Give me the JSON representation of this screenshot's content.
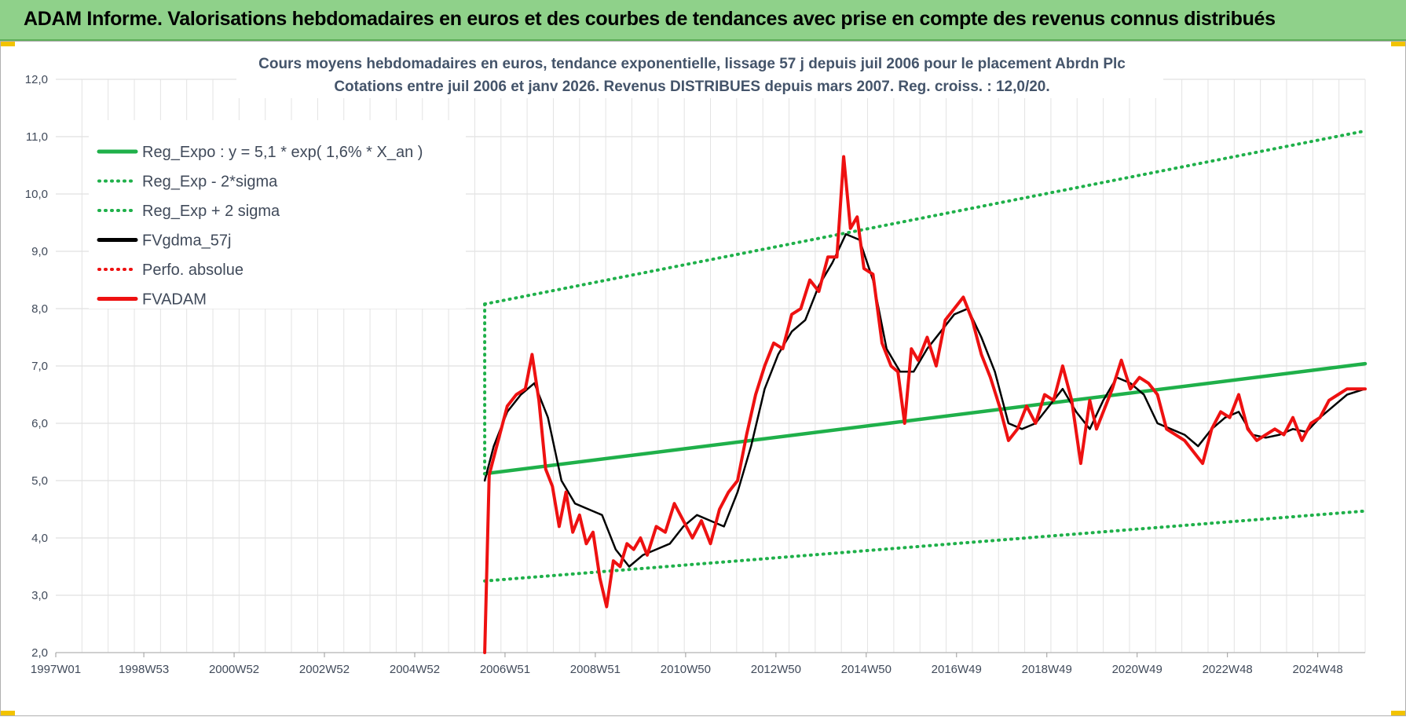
{
  "header": {
    "title": "ADAM Informe. Valorisations hebdomadaires en euros et des courbes de tendances avec prise en compte des revenus connus distribués"
  },
  "chart_data": {
    "type": "line",
    "title_line1": "Cours moyens hebdomadaires en euros, tendance exponentielle, lissage 57 j depuis juil 2006 pour le placement Abrdn Plc",
    "title_line2": "Cotations entre juil 2006 et janv 2026. Revenus DISTRIBUES depuis mars 2007. Reg. croiss. : 12,0/20.",
    "x_ticks": [
      "1997W01",
      "1998W53",
      "2000W52",
      "2002W52",
      "2004W52",
      "2006W51",
      "2008W51",
      "2010W50",
      "2012W50",
      "2014W50",
      "2016W49",
      "2018W49",
      "2020W49",
      "2022W48",
      "2024W48"
    ],
    "x_range": [
      1997.0,
      2026.0
    ],
    "y_ticks": [
      "2,0",
      "3,0",
      "4,0",
      "5,0",
      "6,0",
      "7,0",
      "8,0",
      "9,0",
      "10,0",
      "11,0",
      "12,0"
    ],
    "ylim": [
      2.0,
      12.0
    ],
    "grid": true,
    "legend_position": "top-left",
    "colors": {
      "green": "#1fb04a",
      "black": "#000000",
      "red": "#ee1111"
    },
    "series": [
      {
        "name": "Reg_Expo : y = 5,1 * exp( 1,6% *  X_an )",
        "style": "solid",
        "color": "#1fb04a",
        "x": [
          2006.5,
          2026.0
        ],
        "y": [
          5.12,
          7.04
        ]
      },
      {
        "name": "Reg_Exp - 2*sigma",
        "style": "dotted",
        "color": "#1fb04a",
        "x": [
          2006.5,
          2026.0
        ],
        "y": [
          3.25,
          4.47
        ]
      },
      {
        "name": "Reg_Exp + 2 sigma",
        "style": "dotted",
        "color": "#1fb04a",
        "x": [
          2006.5,
          2026.0
        ],
        "y": [
          8.08,
          11.1
        ]
      },
      {
        "name": "FVgdma_57j",
        "style": "solid",
        "color": "#000000",
        "x": [
          2006.5,
          2006.7,
          2007.0,
          2007.3,
          2007.6,
          2007.9,
          2008.2,
          2008.5,
          2008.8,
          2009.1,
          2009.4,
          2009.7,
          2010.0,
          2010.3,
          2010.6,
          2010.9,
          2011.2,
          2011.5,
          2011.8,
          2012.1,
          2012.4,
          2012.7,
          2013.0,
          2013.3,
          2013.6,
          2013.9,
          2014.2,
          2014.5,
          2014.8,
          2015.1,
          2015.4,
          2015.7,
          2016.0,
          2016.3,
          2016.6,
          2016.9,
          2017.2,
          2017.5,
          2017.8,
          2018.1,
          2018.4,
          2018.7,
          2019.0,
          2019.3,
          2019.6,
          2019.9,
          2020.2,
          2020.5,
          2020.8,
          2021.1,
          2021.4,
          2021.7,
          2022.0,
          2022.3,
          2022.6,
          2022.9,
          2023.2,
          2023.5,
          2023.8,
          2024.1,
          2024.4,
          2024.7,
          2025.0,
          2025.3,
          2025.6,
          2026.0
        ],
        "y": [
          5.0,
          5.6,
          6.2,
          6.5,
          6.7,
          6.1,
          5.0,
          4.6,
          4.5,
          4.4,
          3.8,
          3.5,
          3.7,
          3.8,
          3.9,
          4.2,
          4.4,
          4.3,
          4.2,
          4.8,
          5.6,
          6.6,
          7.2,
          7.6,
          7.8,
          8.4,
          8.8,
          9.3,
          9.2,
          8.5,
          7.3,
          6.9,
          6.9,
          7.3,
          7.6,
          7.9,
          8.0,
          7.5,
          6.9,
          6.0,
          5.9,
          6.0,
          6.3,
          6.6,
          6.2,
          5.9,
          6.4,
          6.8,
          6.7,
          6.5,
          6.0,
          5.9,
          5.8,
          5.6,
          5.9,
          6.1,
          6.2,
          5.8,
          5.75,
          5.8,
          5.9,
          5.85,
          6.1,
          6.3,
          6.5,
          6.6
        ]
      },
      {
        "name": "Perfo. absolue",
        "style": "dotted",
        "color": "#ee1111",
        "x": [],
        "y": []
      },
      {
        "name": "FVADAM",
        "style": "solid",
        "color": "#ee1111",
        "x": [
          2006.5,
          2006.6,
          2006.8,
          2007.0,
          2007.2,
          2007.4,
          2007.55,
          2007.7,
          2007.85,
          2008.0,
          2008.15,
          2008.3,
          2008.45,
          2008.6,
          2008.75,
          2008.9,
          2009.05,
          2009.2,
          2009.35,
          2009.5,
          2009.65,
          2009.8,
          2009.95,
          2010.1,
          2010.3,
          2010.5,
          2010.7,
          2010.9,
          2011.1,
          2011.3,
          2011.5,
          2011.7,
          2011.9,
          2012.1,
          2012.3,
          2012.5,
          2012.7,
          2012.9,
          2013.1,
          2013.3,
          2013.5,
          2013.7,
          2013.9,
          2014.1,
          2014.3,
          2014.45,
          2014.6,
          2014.75,
          2014.9,
          2015.1,
          2015.3,
          2015.5,
          2015.65,
          2015.8,
          2015.95,
          2016.1,
          2016.3,
          2016.5,
          2016.7,
          2016.9,
          2017.1,
          2017.3,
          2017.5,
          2017.7,
          2017.9,
          2018.1,
          2018.3,
          2018.5,
          2018.7,
          2018.9,
          2019.1,
          2019.3,
          2019.5,
          2019.7,
          2019.9,
          2020.05,
          2020.2,
          2020.4,
          2020.6,
          2020.8,
          2021.0,
          2021.2,
          2021.4,
          2021.6,
          2021.8,
          2022.0,
          2022.2,
          2022.4,
          2022.6,
          2022.8,
          2023.0,
          2023.2,
          2023.4,
          2023.6,
          2023.8,
          2024.0,
          2024.2,
          2024.4,
          2024.6,
          2024.8,
          2025.0,
          2025.2,
          2025.4,
          2025.6,
          2025.8,
          2026.0
        ],
        "y": [
          2.0,
          5.1,
          5.7,
          6.3,
          6.5,
          6.6,
          7.2,
          6.4,
          5.2,
          4.9,
          4.2,
          4.8,
          4.1,
          4.4,
          3.9,
          4.1,
          3.3,
          2.8,
          3.6,
          3.5,
          3.9,
          3.8,
          4.0,
          3.7,
          4.2,
          4.1,
          4.6,
          4.3,
          4.0,
          4.3,
          3.9,
          4.5,
          4.8,
          5.0,
          5.8,
          6.5,
          7.0,
          7.4,
          7.3,
          7.9,
          8.0,
          8.5,
          8.3,
          8.9,
          8.9,
          10.65,
          9.4,
          9.6,
          8.7,
          8.6,
          7.4,
          7.0,
          6.9,
          6.0,
          7.3,
          7.1,
          7.5,
          7.0,
          7.8,
          8.0,
          8.2,
          7.8,
          7.2,
          6.8,
          6.3,
          5.7,
          5.9,
          6.3,
          6.0,
          6.5,
          6.4,
          7.0,
          6.4,
          5.3,
          6.4,
          5.9,
          6.2,
          6.6,
          7.1,
          6.6,
          6.8,
          6.7,
          6.5,
          5.9,
          5.8,
          5.7,
          5.5,
          5.3,
          5.9,
          6.2,
          6.1,
          6.5,
          5.9,
          5.7,
          5.8,
          5.9,
          5.8,
          6.1,
          5.7,
          6.0,
          6.1,
          6.4,
          6.5,
          6.6,
          6.6,
          6.6
        ]
      }
    ]
  }
}
